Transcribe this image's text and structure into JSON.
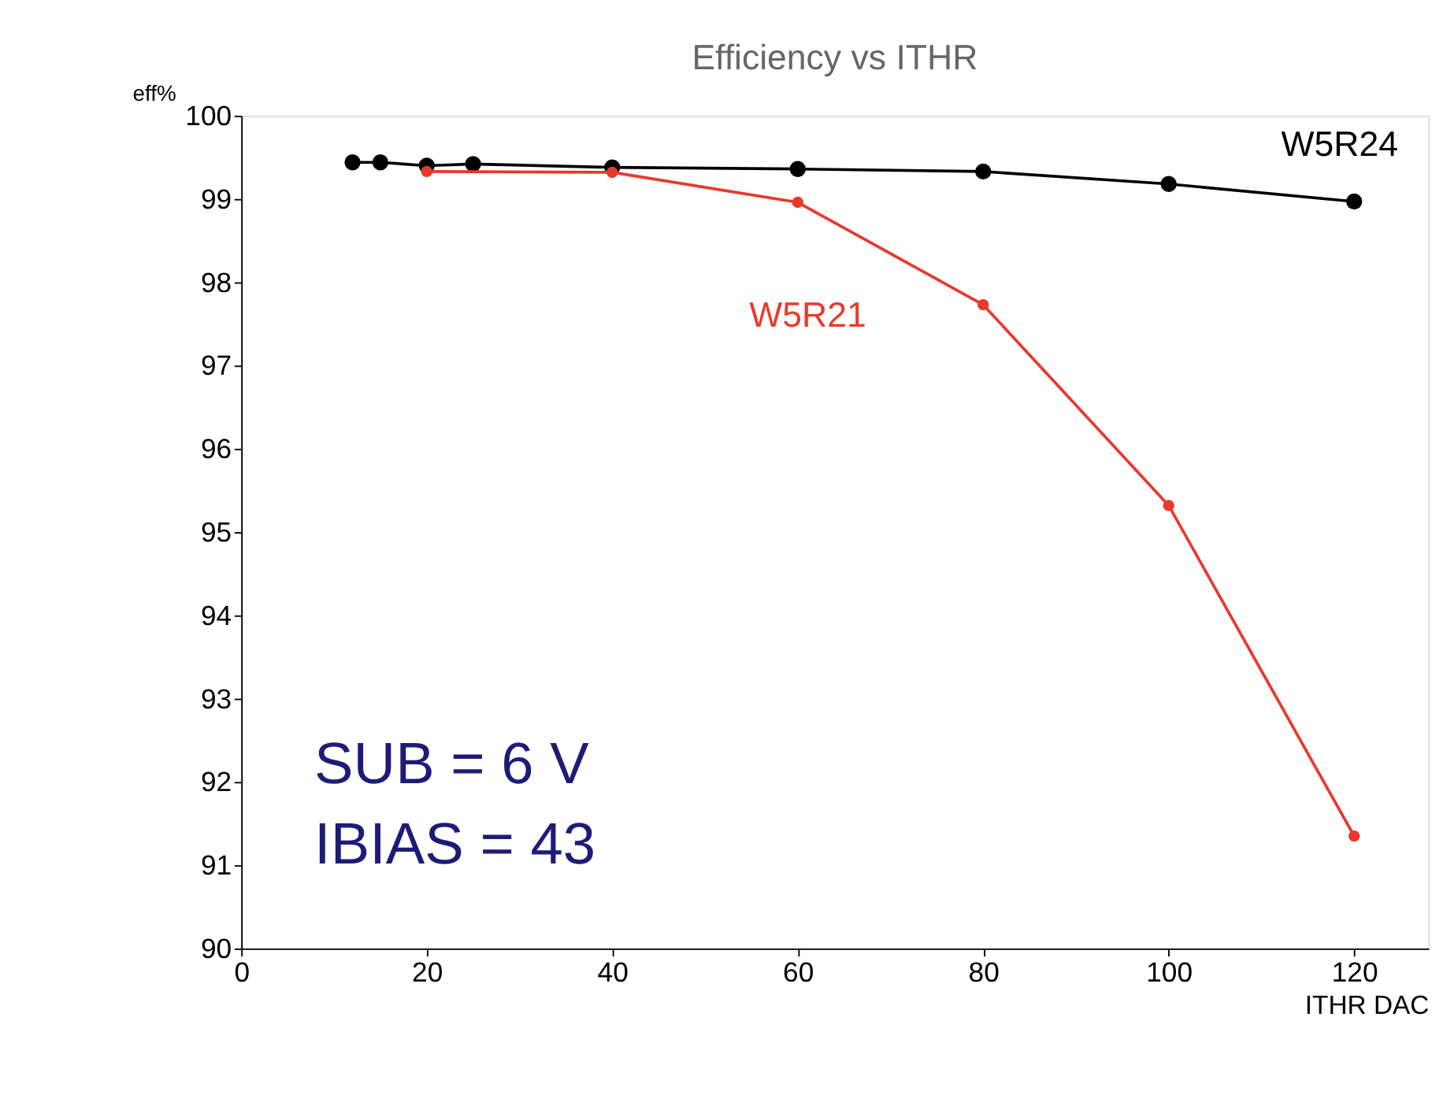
{
  "chart_data": {
    "type": "line",
    "title": "Efficiency vs ITHR",
    "xlabel": "ITHR DAC",
    "ylabel": "eff%",
    "xlim": [
      0,
      128
    ],
    "xticks": [
      0,
      20,
      40,
      60,
      80,
      100,
      120
    ],
    "ylim": [
      90,
      100
    ],
    "yticks": [
      90,
      91,
      92,
      93,
      94,
      95,
      96,
      97,
      98,
      99,
      100
    ],
    "marker": "circle",
    "line_style": "solid",
    "series": [
      {
        "name": "W5R24",
        "color": "#000000",
        "x": [
          12,
          15,
          20,
          25,
          40,
          60,
          80,
          100,
          120
        ],
        "values": [
          99.44,
          99.44,
          99.4,
          99.42,
          99.38,
          99.36,
          99.33,
          99.18,
          98.97
        ]
      },
      {
        "name": "W5R21",
        "color": "#e8392b",
        "x": [
          20,
          40,
          60,
          80,
          100,
          120
        ],
        "values": [
          99.33,
          99.32,
          98.96,
          97.73,
          95.32,
          91.35
        ]
      }
    ],
    "annotations": [
      "SUB = 6 V",
      "IBIAS = 43"
    ]
  }
}
